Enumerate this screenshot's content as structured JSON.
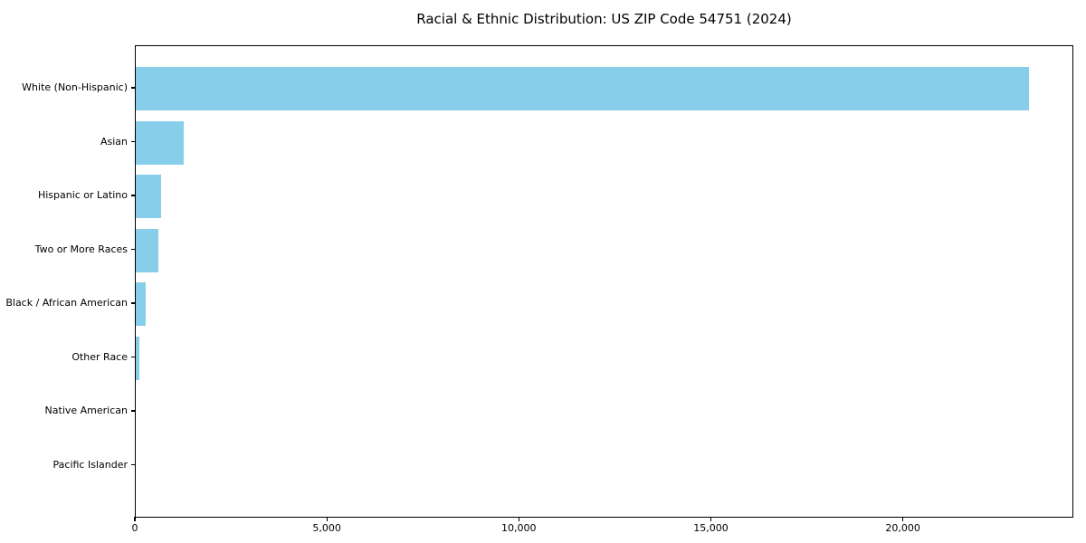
{
  "chart_data": {
    "type": "bar",
    "orientation": "horizontal",
    "title": "Racial & Ethnic Distribution: US ZIP Code 54751 (2024)",
    "categories": [
      "White (Non-Hispanic)",
      "Asian",
      "Hispanic or Latino",
      "Two or More Races",
      "Black / African American",
      "Other Race",
      "Native American",
      "Pacific Islander"
    ],
    "values": [
      23250,
      1250,
      650,
      600,
      260,
      100,
      0,
      0
    ],
    "xlabel": "",
    "ylabel": "",
    "xlim": [
      0,
      24440
    ],
    "xticks": [
      0,
      5000,
      10000,
      15000,
      20000
    ],
    "xtick_labels": [
      "0",
      "5,000",
      "10,000",
      "15,000",
      "20,000"
    ],
    "bar_color": "#87CEEB",
    "axis_color": "#000000",
    "background_color": "#ffffff",
    "grid": false,
    "legend": null
  }
}
